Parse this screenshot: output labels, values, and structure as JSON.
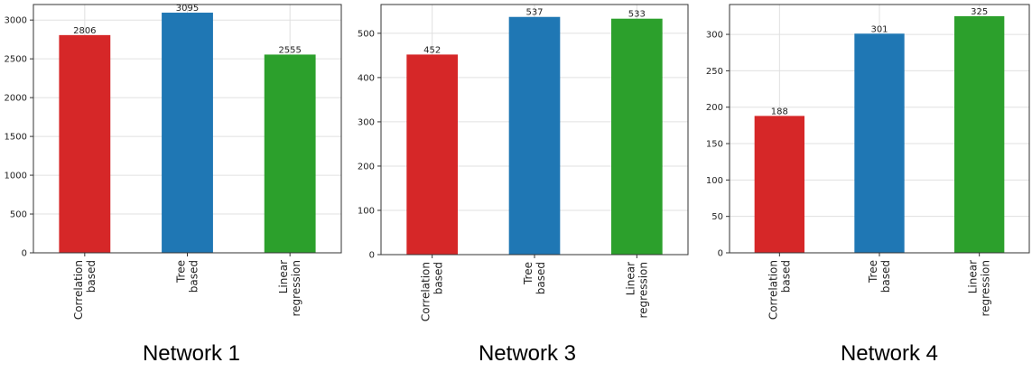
{
  "chart_data": [
    {
      "type": "bar",
      "title": "Network 1",
      "categories": [
        "Correlation\nbased",
        "Tree\nbased",
        "Linear\nregression"
      ],
      "values": [
        2806,
        3095,
        2555
      ],
      "colors": [
        "#d62728",
        "#1f77b4",
        "#2ca02c"
      ],
      "ylim": [
        0,
        3200
      ],
      "yticks": [
        0,
        500,
        1000,
        1500,
        2000,
        2500,
        3000
      ],
      "grid": true
    },
    {
      "type": "bar",
      "title": "Network 3",
      "categories": [
        "Correlation\nbased",
        "Tree\nbased",
        "Linear\nregression"
      ],
      "values": [
        452,
        537,
        533
      ],
      "colors": [
        "#d62728",
        "#1f77b4",
        "#2ca02c"
      ],
      "ylim": [
        0,
        565
      ],
      "yticks": [
        0,
        100,
        200,
        300,
        400,
        500
      ],
      "grid": true
    },
    {
      "type": "bar",
      "title": "Network 4",
      "categories": [
        "Correlation\nbased",
        "Tree\nbased",
        "Linear\nregression"
      ],
      "values": [
        188,
        301,
        325
      ],
      "colors": [
        "#d62728",
        "#1f77b4",
        "#2ca02c"
      ],
      "ylim": [
        0,
        341
      ],
      "yticks": [
        0,
        50,
        100,
        150,
        200,
        250,
        300
      ],
      "grid": true
    }
  ]
}
